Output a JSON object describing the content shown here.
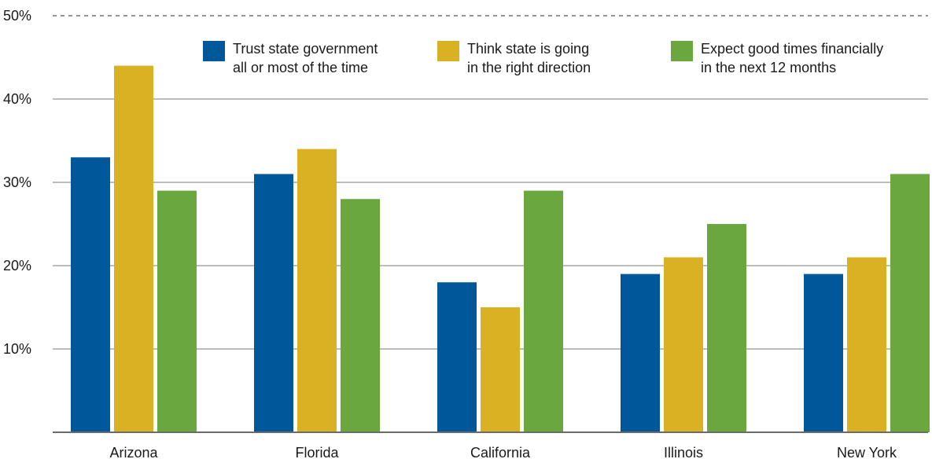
{
  "chart_data": {
    "type": "bar",
    "categories": [
      "Arizona",
      "Florida",
      "California",
      "Illinois",
      "New York"
    ],
    "series": [
      {
        "name": "Trust state government\nall or most of the time",
        "color": "#00589a",
        "values": [
          33,
          31,
          18,
          19,
          19
        ]
      },
      {
        "name": "Think state is going\nin the right direction",
        "color": "#dbb124",
        "values": [
          44,
          34,
          15,
          21,
          21
        ]
      },
      {
        "name": "Expect good times financially\nin the next 12 months",
        "color": "#6aa83f",
        "values": [
          29,
          28,
          29,
          25,
          31
        ]
      }
    ],
    "y_ticks": [
      "10%",
      "20%",
      "30%",
      "40%",
      "50%"
    ],
    "y_tick_values": [
      10,
      20,
      30,
      40,
      50
    ],
    "ylim": [
      0,
      50
    ],
    "grid": true,
    "legend_position": "top"
  }
}
